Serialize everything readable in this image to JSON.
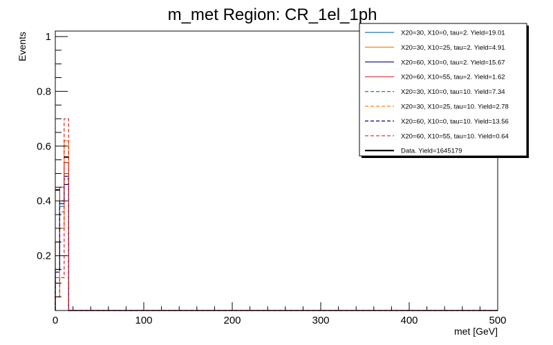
{
  "chart_data": {
    "type": "line",
    "subtype": "histogram",
    "title": "m_met Region: CR_1el_1ph",
    "xlabel": "met [GeV]",
    "ylabel": "Events",
    "xlim": [
      0,
      500
    ],
    "ylim": [
      0,
      1.02
    ],
    "x_ticks": [
      0,
      100,
      200,
      300,
      400,
      500
    ],
    "y_ticks": [
      0.2,
      0.4,
      0.6,
      0.8,
      1
    ],
    "bin_edges": [
      0,
      5,
      10,
      15,
      20,
      500
    ],
    "grid": false,
    "legend_position": "top-right",
    "series": [
      {
        "name": "X20=30, X10=0, tau=2. Yield=19.01",
        "color": "#1f77b4",
        "dash": false,
        "values": [
          0.12,
          0.38,
          0.5,
          0.0,
          0.0
        ]
      },
      {
        "name": "X20=30, X10=25, tau=2. Yield=4.91",
        "color": "#ff7f0e",
        "dash": false,
        "values": [
          0.05,
          0.3,
          0.62,
          0.0,
          0.0
        ]
      },
      {
        "name": "X20=60, X10=0, tau=2. Yield=15.67",
        "color": "#000080",
        "dash": false,
        "values": [
          0.15,
          0.39,
          0.46,
          0.0,
          0.0
        ]
      },
      {
        "name": "X20=60, X10=55, tau=2. Yield=1.62",
        "color": "#d62728",
        "dash": false,
        "values": [
          0.25,
          0.45,
          0.54,
          0.0,
          0.0
        ]
      },
      {
        "name": "X20=30, X10=0, tau=10. Yield=7.34",
        "color": "#1f77b4",
        "dash": true,
        "values": [
          0.1,
          0.36,
          0.48,
          0.0,
          0.0
        ]
      },
      {
        "name": "X20=30, X10=25, tau=10. Yield=2.78",
        "color": "#ff7f0e",
        "dash": true,
        "values": [
          0.05,
          0.3,
          0.62,
          0.0,
          0.0
        ]
      },
      {
        "name": "X20=60, X10=0, tau=10. Yield=13.56",
        "color": "#000080",
        "dash": true,
        "values": [
          0.14,
          0.4,
          0.49,
          0.0,
          0.0
        ]
      },
      {
        "name": "X20=60, X10=55, tau=10. Yield=0.64",
        "color": "#d62728",
        "dash": true,
        "values": [
          0.05,
          0.12,
          0.7,
          0.0,
          0.0
        ]
      }
    ],
    "data_series": {
      "name": "Data. Yield=1645179",
      "color": "#000000",
      "values": [
        0.44,
        0.0,
        0.56,
        0.0,
        0.0
      ]
    }
  }
}
